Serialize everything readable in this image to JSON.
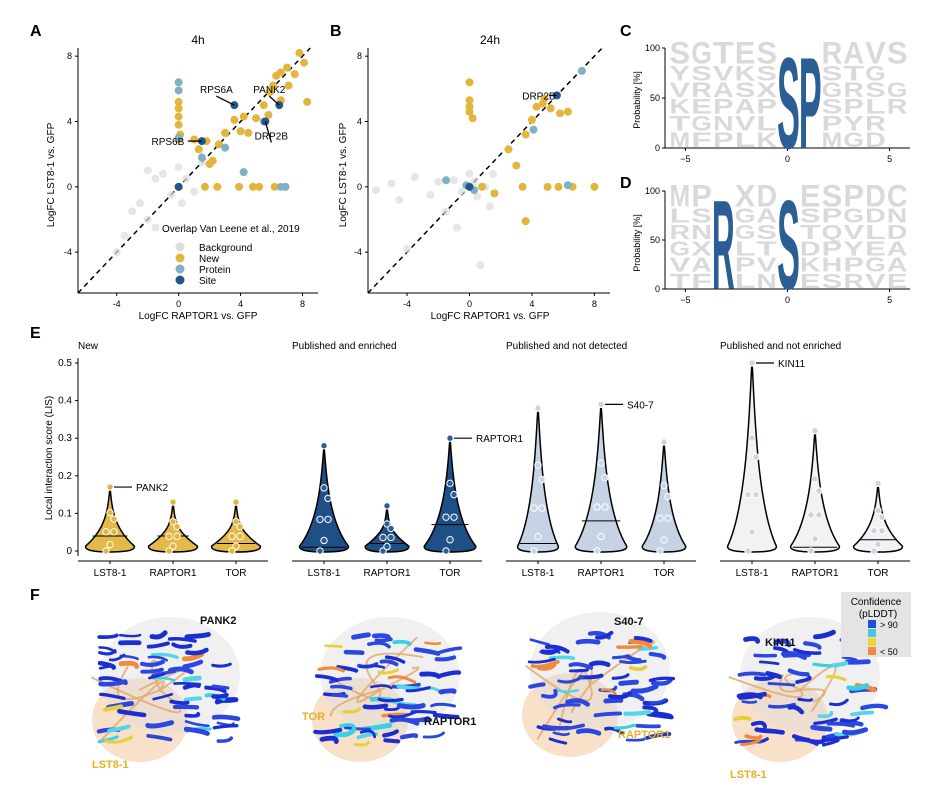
{
  "panel_labels": [
    "A",
    "B",
    "C",
    "D",
    "E",
    "F"
  ],
  "colors": {
    "background": "#dcdcdc",
    "new": "#e2b53c",
    "protein": "#7fb1c6",
    "site": "#22578e",
    "logo_gray": "#d9d9d9",
    "logo_blue": "#2b5e94",
    "violin_new": "#e4b94a",
    "violin_enriched": "#1f4f87",
    "violin_not_detected": "#c6d3e5",
    "violin_not_enriched": "#f2f2f2"
  },
  "scatter_axes": {
    "xlabel": "LogFC RAPTOR1 vs. GFP",
    "ylabel": "LogFC LST8-1 vs. GFP",
    "xticks": [
      -4,
      0,
      4,
      8
    ],
    "yticks": [
      -4,
      0,
      4,
      8
    ]
  },
  "legend": {
    "title": "Overlap Van Leene et al., 2019",
    "items": [
      "Background",
      "New",
      "Protein",
      "Site"
    ]
  },
  "chart_data": [
    {
      "type": "scatter",
      "panel": "A",
      "title": "4h",
      "xlabel": "LogFC RAPTOR1 vs. GFP",
      "ylabel": "LogFC LST8-1 vs. GFP",
      "xlim": [
        -6.5,
        9
      ],
      "ylim": [
        -6.5,
        8.5
      ],
      "annotations": [
        {
          "label": "RPS6A",
          "x": 3.6,
          "y": 5.0
        },
        {
          "label": "PANK2",
          "x": 6.5,
          "y": 5.0
        },
        {
          "label": "DRP2B",
          "x": 5.6,
          "y": 4.0
        },
        {
          "label": "RPS6B",
          "x": 1.5,
          "y": 2.8
        }
      ],
      "series": [
        {
          "name": "Background",
          "points": [
            [
              -4,
              -4
            ],
            [
              -3,
              -1.5
            ],
            [
              -2.5,
              -1
            ],
            [
              -2,
              -2
            ],
            [
              -1.5,
              0.5
            ],
            [
              -1,
              0.8
            ],
            [
              -0.5,
              -0.5
            ],
            [
              0.5,
              0.5
            ],
            [
              1,
              -0.3
            ],
            [
              -1.5,
              -2.5
            ],
            [
              -2,
              1
            ],
            [
              0.2,
              -1
            ],
            [
              1.5,
              1.5
            ],
            [
              -3.5,
              -3.0
            ],
            [
              0,
              1.2
            ]
          ]
        },
        {
          "name": "New",
          "points": [
            [
              0,
              5.2
            ],
            [
              0,
              4.8
            ],
            [
              0,
              4.3
            ],
            [
              0,
              3.8
            ],
            [
              0.1,
              3.2
            ],
            [
              0,
              2.9
            ],
            [
              1,
              2.9
            ],
            [
              1.3,
              2.3
            ],
            [
              1.8,
              2.8
            ],
            [
              2.2,
              1.6
            ],
            [
              2,
              1.4
            ],
            [
              2.6,
              2.6
            ],
            [
              3,
              3.3
            ],
            [
              3.6,
              4.1
            ],
            [
              4,
              3.4
            ],
            [
              4.5,
              3.3
            ],
            [
              4.2,
              4.3
            ],
            [
              5,
              4.2
            ],
            [
              5.5,
              5
            ],
            [
              5.9,
              5.8
            ],
            [
              6.1,
              6.2
            ],
            [
              6.3,
              6.8
            ],
            [
              6.6,
              7
            ],
            [
              7,
              7.3
            ],
            [
              7.5,
              6.9
            ],
            [
              7.1,
              6.2
            ],
            [
              7.8,
              8.2
            ],
            [
              8.1,
              7.6
            ],
            [
              8.3,
              5.2
            ],
            [
              1.7,
              0
            ],
            [
              2.5,
              0
            ],
            [
              3.9,
              0
            ],
            [
              4.8,
              0
            ],
            [
              5.2,
              0
            ],
            [
              6.2,
              0
            ],
            [
              6.6,
              5.3
            ],
            [
              5.8,
              4.4
            ]
          ]
        },
        {
          "name": "Protein",
          "points": [
            [
              0,
              6.4
            ],
            [
              0,
              5.9
            ],
            [
              0,
              3.0
            ],
            [
              1.5,
              1.8
            ],
            [
              0,
              0
            ],
            [
              3,
              2.4
            ],
            [
              5.5,
              4
            ],
            [
              6.6,
              0
            ],
            [
              6.9,
              0
            ],
            [
              4.2,
              0.9
            ]
          ]
        },
        {
          "name": "Site",
          "points": [
            [
              3.6,
              5.0
            ],
            [
              6.5,
              5.0
            ],
            [
              5.6,
              4.0
            ],
            [
              1.5,
              2.8
            ],
            [
              0,
              0
            ]
          ]
        }
      ]
    },
    {
      "type": "scatter",
      "panel": "B",
      "title": "24h",
      "xlabel": "LogFC RAPTOR1 vs. GFP",
      "ylabel": "LogFC LST8-1 vs. GFP",
      "xlim": [
        -6.5,
        9
      ],
      "ylim": [
        -6.5,
        8.5
      ],
      "annotations": [
        {
          "label": "DRP2B",
          "x": 5.6,
          "y": 5.6
        }
      ],
      "series": [
        {
          "name": "Background",
          "points": [
            [
              -6,
              -0.2
            ],
            [
              -5,
              0.2
            ],
            [
              -4.5,
              -0.8
            ],
            [
              -3.5,
              0.6
            ],
            [
              -2.5,
              -0.5
            ],
            [
              -2,
              0.3
            ],
            [
              -1.5,
              -1.5
            ],
            [
              -1,
              0.4
            ],
            [
              -0.5,
              -0.3
            ],
            [
              0,
              0.8
            ],
            [
              0.5,
              -0.6
            ],
            [
              1,
              0
            ],
            [
              1.3,
              -1.2
            ],
            [
              -0.8,
              -2.5
            ],
            [
              0.7,
              -4.8
            ],
            [
              -4,
              -3.8
            ],
            [
              1.5,
              0.8
            ],
            [
              0.3,
              0.3
            ]
          ]
        },
        {
          "name": "New",
          "points": [
            [
              0,
              6.4
            ],
            [
              0,
              5.3
            ],
            [
              0,
              4.9
            ],
            [
              0,
              4.6
            ],
            [
              0.2,
              4.2
            ],
            [
              2.5,
              2.3
            ],
            [
              3,
              1.3
            ],
            [
              3.6,
              3.2
            ],
            [
              4,
              4.1
            ],
            [
              4.3,
              4.9
            ],
            [
              4.7,
              5.1
            ],
            [
              5.2,
              4.8
            ],
            [
              5.8,
              4.5
            ],
            [
              6.3,
              4.6
            ],
            [
              4.8,
              5.4
            ],
            [
              0.8,
              0
            ],
            [
              3.4,
              0
            ],
            [
              5.0,
              0
            ],
            [
              5.7,
              0
            ],
            [
              6.6,
              0
            ],
            [
              8,
              0
            ],
            [
              3.6,
              -2.1
            ],
            [
              1.6,
              -0.4
            ]
          ]
        },
        {
          "name": "Protein",
          "points": [
            [
              -1.5,
              0.4
            ],
            [
              -0.2,
              0.1
            ],
            [
              0.3,
              -0.2
            ],
            [
              6.3,
              0.1
            ],
            [
              7.2,
              7.1
            ],
            [
              4.1,
              3.5
            ]
          ]
        },
        {
          "name": "Site",
          "points": [
            [
              5.6,
              5.6
            ],
            [
              0,
              0
            ]
          ]
        }
      ]
    },
    {
      "type": "logo",
      "panel": "C",
      "ylabel": "Probability [%]",
      "yticks": [
        0,
        50,
        100
      ],
      "xticks": [
        -5,
        0,
        5
      ],
      "highlight": [
        "S",
        "P"
      ],
      "background_rows": [
        "SGTESSPRAVS",
        "YSVKSPXSTG",
        "VRASXSDGRSG",
        "KEPAPNDSPLR",
        "TGNVLAEPYR",
        "MFPLKGEMGD"
      ]
    },
    {
      "type": "logo",
      "panel": "D",
      "ylabel": "Probability [%]",
      "yticks": [
        0,
        50,
        100
      ],
      "xticks": [
        -5,
        0,
        5
      ],
      "highlight": [
        "R",
        "S"
      ],
      "background_rows": [
        "MPRXDSESPDC",
        "LSAGATSPGDNR",
        "RNSGSGTQVLD",
        "GXALTRDPYEA",
        "VAGPVCKHPGA",
        "TFDLNKESRVE"
      ]
    },
    {
      "type": "violin",
      "panel": "E",
      "ylabel": "Local interaction score (LIS)",
      "ylim": [
        0,
        0.5
      ],
      "yticks": [
        0,
        0.1,
        0.2,
        0.3,
        0.4,
        0.5
      ],
      "categories": [
        "LST8-1",
        "RAPTOR1",
        "TOR"
      ],
      "groups": [
        {
          "name": "New",
          "annotation": {
            "label": "PANK2",
            "category": "LST8-1",
            "value": 0.17
          },
          "max": [
            0.17,
            0.13,
            0.13
          ],
          "median": [
            0.04,
            0.04,
            0.02
          ],
          "width": [
            0.9,
            0.9,
            0.9
          ]
        },
        {
          "name": "Published and enriched",
          "annotation": {
            "label": "RAPTOR1",
            "category": "TOR",
            "value": 0.3
          },
          "max": [
            0.28,
            0.12,
            0.3
          ],
          "median": [
            0.01,
            0.02,
            0.07
          ],
          "width": [
            0.9,
            0.8,
            0.95
          ]
        },
        {
          "name": "Published and not detected",
          "annotation": {
            "label": "S40-7",
            "category": "RAPTOR1",
            "value": 0.39
          },
          "max": [
            0.38,
            0.39,
            0.29
          ],
          "median": [
            0.02,
            0.08,
            0.0
          ],
          "width": [
            0.75,
            0.95,
            0.8
          ]
        },
        {
          "name": "Published and not enriched",
          "annotation": {
            "label": "KIN11",
            "category": "LST8-1",
            "value": 0.5
          },
          "max": [
            0.5,
            0.32,
            0.18
          ],
          "median": [
            0.0,
            0.01,
            0.03
          ],
          "width": [
            0.9,
            0.9,
            0.9
          ]
        }
      ]
    }
  ],
  "structures": [
    {
      "labels": [
        {
          "text": "PANK2",
          "color": "#111111"
        },
        {
          "text": "LST8-1",
          "color": "#e6b020"
        }
      ]
    },
    {
      "labels": [
        {
          "text": "TOR",
          "color": "#e6b020"
        },
        {
          "text": "RAPTOR1",
          "color": "#111111"
        }
      ]
    },
    {
      "labels": [
        {
          "text": "S40-7",
          "color": "#111111"
        },
        {
          "text": "RAPTOR1",
          "color": "#e6b020"
        }
      ]
    },
    {
      "labels": [
        {
          "text": "KIN11",
          "color": "#111111"
        },
        {
          "text": "LST8-1",
          "color": "#e6b020"
        }
      ]
    }
  ],
  "confidence_legend": {
    "title1": "Confidence",
    "title2": "(pLDDT)",
    "items": [
      {
        "label": "> 90",
        "color": "#1f4fd6"
      },
      {
        "label": "",
        "color": "#4fc4e0"
      },
      {
        "label": "",
        "color": "#f0d23a"
      },
      {
        "label": "< 50",
        "color": "#f08a3c"
      }
    ]
  }
}
